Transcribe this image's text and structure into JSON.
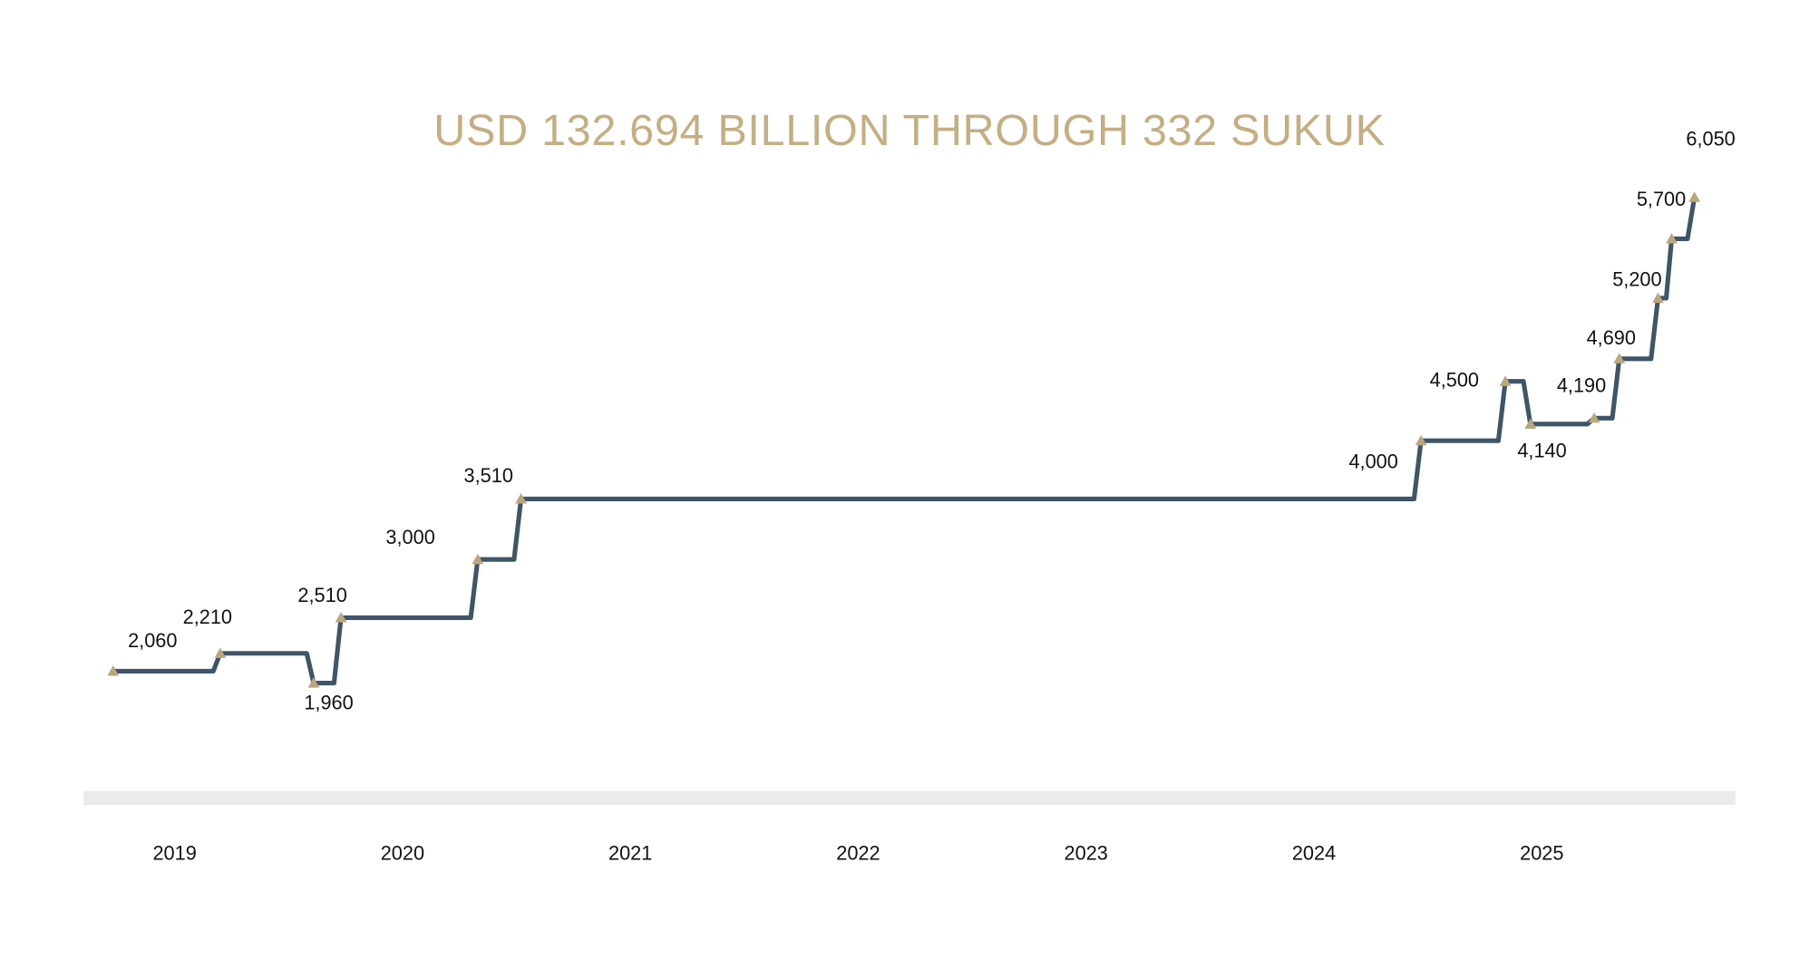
{
  "chart_data": {
    "type": "step",
    "title": "USD 132.694 BILLION THROUGH 332 SUKUK",
    "x": [
      2018.73,
      2019.2,
      2019.61,
      2019.73,
      2020.33,
      2020.52,
      2024.47,
      2024.84,
      2024.95,
      2025.23,
      2025.34,
      2025.51,
      2025.57,
      2025.67
    ],
    "values": [
      2060,
      2210,
      1960,
      2510,
      3000,
      3510,
      4000,
      4500,
      4140,
      4190,
      4690,
      5200,
      5700,
      6050
    ],
    "value_labels": [
      "2,060",
      "2,210",
      "1,960",
      "2,510",
      "3,000",
      "3,510",
      "4,000",
      "4,500",
      "4,140",
      "4,190",
      "4,690",
      "5,200",
      "5,700",
      "6,050"
    ],
    "color": "#3f5568",
    "marker_color": "#bba77d",
    "xlim": [
      2018.6,
      2025.85
    ],
    "xticks": [
      2019,
      2020,
      2021,
      2022,
      2023,
      2024,
      2025
    ],
    "ylim": [
      1500,
      6300
    ]
  }
}
